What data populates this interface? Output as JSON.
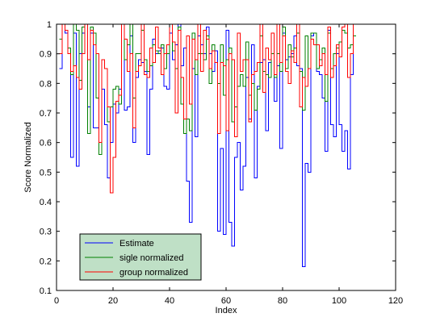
{
  "chart_data": {
    "type": "line",
    "title": "",
    "xlabel": "Index",
    "ylabel": "Score Normalized",
    "xlim": [
      0,
      120
    ],
    "ylim": [
      0.1,
      1
    ],
    "xticks": [
      0,
      20,
      40,
      60,
      80,
      100,
      120
    ],
    "yticks": [
      0.1,
      0.2,
      0.3,
      0.4,
      0.5,
      0.6,
      0.7,
      0.8,
      0.9,
      1
    ],
    "ytick_labels": [
      "0.1",
      "0.2",
      "0.3",
      "0.4",
      "0.5",
      "0.6",
      "0.7",
      "0.8",
      "0.9",
      "1"
    ],
    "grid": false,
    "step": "stairs",
    "legend_position": "bottom-left",
    "x": [
      1,
      2,
      3,
      4,
      5,
      6,
      7,
      8,
      9,
      10,
      11,
      12,
      13,
      14,
      15,
      16,
      17,
      18,
      19,
      20,
      21,
      22,
      23,
      24,
      25,
      26,
      27,
      28,
      29,
      30,
      31,
      32,
      33,
      34,
      35,
      36,
      37,
      38,
      39,
      40,
      41,
      42,
      43,
      44,
      45,
      46,
      47,
      48,
      49,
      50,
      51,
      52,
      53,
      54,
      55,
      56,
      57,
      58,
      59,
      60,
      61,
      62,
      63,
      64,
      65,
      66,
      67,
      68,
      69,
      70,
      71,
      72,
      73,
      74,
      75,
      76,
      77,
      78,
      79,
      80,
      81,
      82,
      83,
      84,
      85,
      86,
      87,
      88,
      89,
      90,
      91,
      92,
      93,
      94,
      95,
      96,
      97,
      98,
      99,
      100,
      101,
      102,
      103,
      104,
      105
    ],
    "series": [
      {
        "name": "Estimate",
        "color": "#0000ff",
        "values": [
          0.85,
          1,
          0.97,
          0.9,
          0.55,
          0.97,
          0.52,
          0.9,
          0.97,
          1,
          0.72,
          0.97,
          0.65,
          0.65,
          0.56,
          0.78,
          0.66,
          0.48,
          0.6,
          0.73,
          0.7,
          0.78,
          1,
          0.71,
          0.72,
          0.96,
          0.6,
          0.82,
          0.88,
          0.87,
          0.84,
          0.56,
          0.78,
          0.95,
          0.9,
          0.91,
          0.92,
          0.79,
          0.78,
          0.97,
          0.88,
          0.93,
          1,
          0.86,
          0.92,
          0.47,
          0.33,
          0.85,
          0.62,
          0.96,
          0.93,
          0.9,
          0.99,
          0.9,
          0.84,
          0.91,
          0.3,
          0.58,
          0.29,
          0.98,
          0.33,
          0.25,
          0.55,
          0.6,
          0.44,
          0.52,
          0.82,
          0.68,
          0.93,
          0.48,
          0.79,
          0.87,
          0.88,
          0.64,
          0.87,
          0.97,
          0.74,
          0.86,
          0.58,
          0.97,
          0.88,
          0.89,
          0.9,
          0.96,
          0.86,
          0.85,
          0.18,
          0.53,
          0.5,
          0.96,
          0.97,
          0.84,
          0.83,
          0.75,
          0.57,
          0.98,
          0.66,
          0.62,
          0.9,
          0.66,
          0.57,
          0.64,
          0.51,
          0.83,
          1
        ]
      },
      {
        "name": "sigle normalized",
        "color": "#008000",
        "values": [
          0.95,
          1,
          0.98,
          0.92,
          0.83,
          1,
          0.98,
          0.81,
          0.99,
          1,
          0.63,
          0.99,
          0.97,
          0.75,
          0.56,
          0.88,
          0.85,
          0.67,
          0.72,
          0.78,
          0.79,
          0.73,
          1,
          0.88,
          0.93,
          1,
          0.75,
          0.9,
          0.9,
          0.98,
          0.88,
          0.84,
          0.86,
          0.93,
          0.91,
          0.9,
          0.93,
          0.85,
          0.9,
          1,
          0.91,
          0.85,
          0.99,
          0.73,
          0.63,
          0.68,
          0.64,
          0.97,
          0.83,
          0.9,
          0.9,
          0.88,
          0.96,
          0.8,
          0.93,
          0.87,
          0.8,
          0.93,
          0.76,
          0.88,
          0.92,
          0.67,
          0.72,
          0.79,
          0.83,
          0.79,
          0.94,
          0.76,
          0.8,
          0.71,
          0.78,
          0.96,
          0.84,
          0.83,
          0.82,
          0.9,
          0.82,
          0.9,
          0.84,
          0.99,
          0.85,
          0.93,
          0.89,
          0.92,
          0.97,
          0.84,
          0.71,
          0.96,
          0.85,
          0.97,
          0.97,
          0.85,
          0.88,
          0.92,
          0.74,
          0.97,
          0.85,
          0.9,
          0.92,
          0.94,
          0.98,
          0.97,
          0.92,
          0.93,
          0.96
        ]
      },
      {
        "name": "group normalized",
        "color": "#ff0000",
        "values": [
          0.9,
          1,
          0.98,
          0.9,
          0.84,
          0.86,
          0.82,
          0.78,
          0.9,
          1,
          0.88,
          0.98,
          0.93,
          0.9,
          0.6,
          0.88,
          0.85,
          0.72,
          0.43,
          0.55,
          0.74,
          0.76,
          1,
          0.95,
          0.84,
          0.9,
          0.65,
          0.84,
          0.86,
          1,
          0.83,
          0.82,
          0.92,
          0.87,
          0.99,
          0.92,
          0.83,
          0.9,
          0.93,
          1,
          0.94,
          0.7,
          0.98,
          0.82,
          0.68,
          0.96,
          0.73,
          0.95,
          0.88,
          1,
          0.84,
          0.98,
          0.95,
          0.85,
          0.91,
          0.87,
          0.63,
          0.87,
          0.86,
          0.64,
          0.9,
          0.88,
          0.62,
          0.97,
          0.84,
          0.88,
          0.88,
          0.67,
          0.83,
          0.84,
          0.87,
          1,
          0.77,
          0.92,
          0.88,
          0.97,
          0.83,
          1,
          0.87,
          0.96,
          0.84,
          0.8,
          0.91,
          0.87,
          1,
          0.72,
          0.82,
          0.79,
          0.85,
          0.95,
          0.93,
          0.93,
          0.86,
          0.9,
          0.83,
          0.99,
          0.82,
          0.86,
          0.93,
          0.89,
          0.99,
          1,
          0.82,
          0.9,
          1
        ]
      }
    ]
  }
}
